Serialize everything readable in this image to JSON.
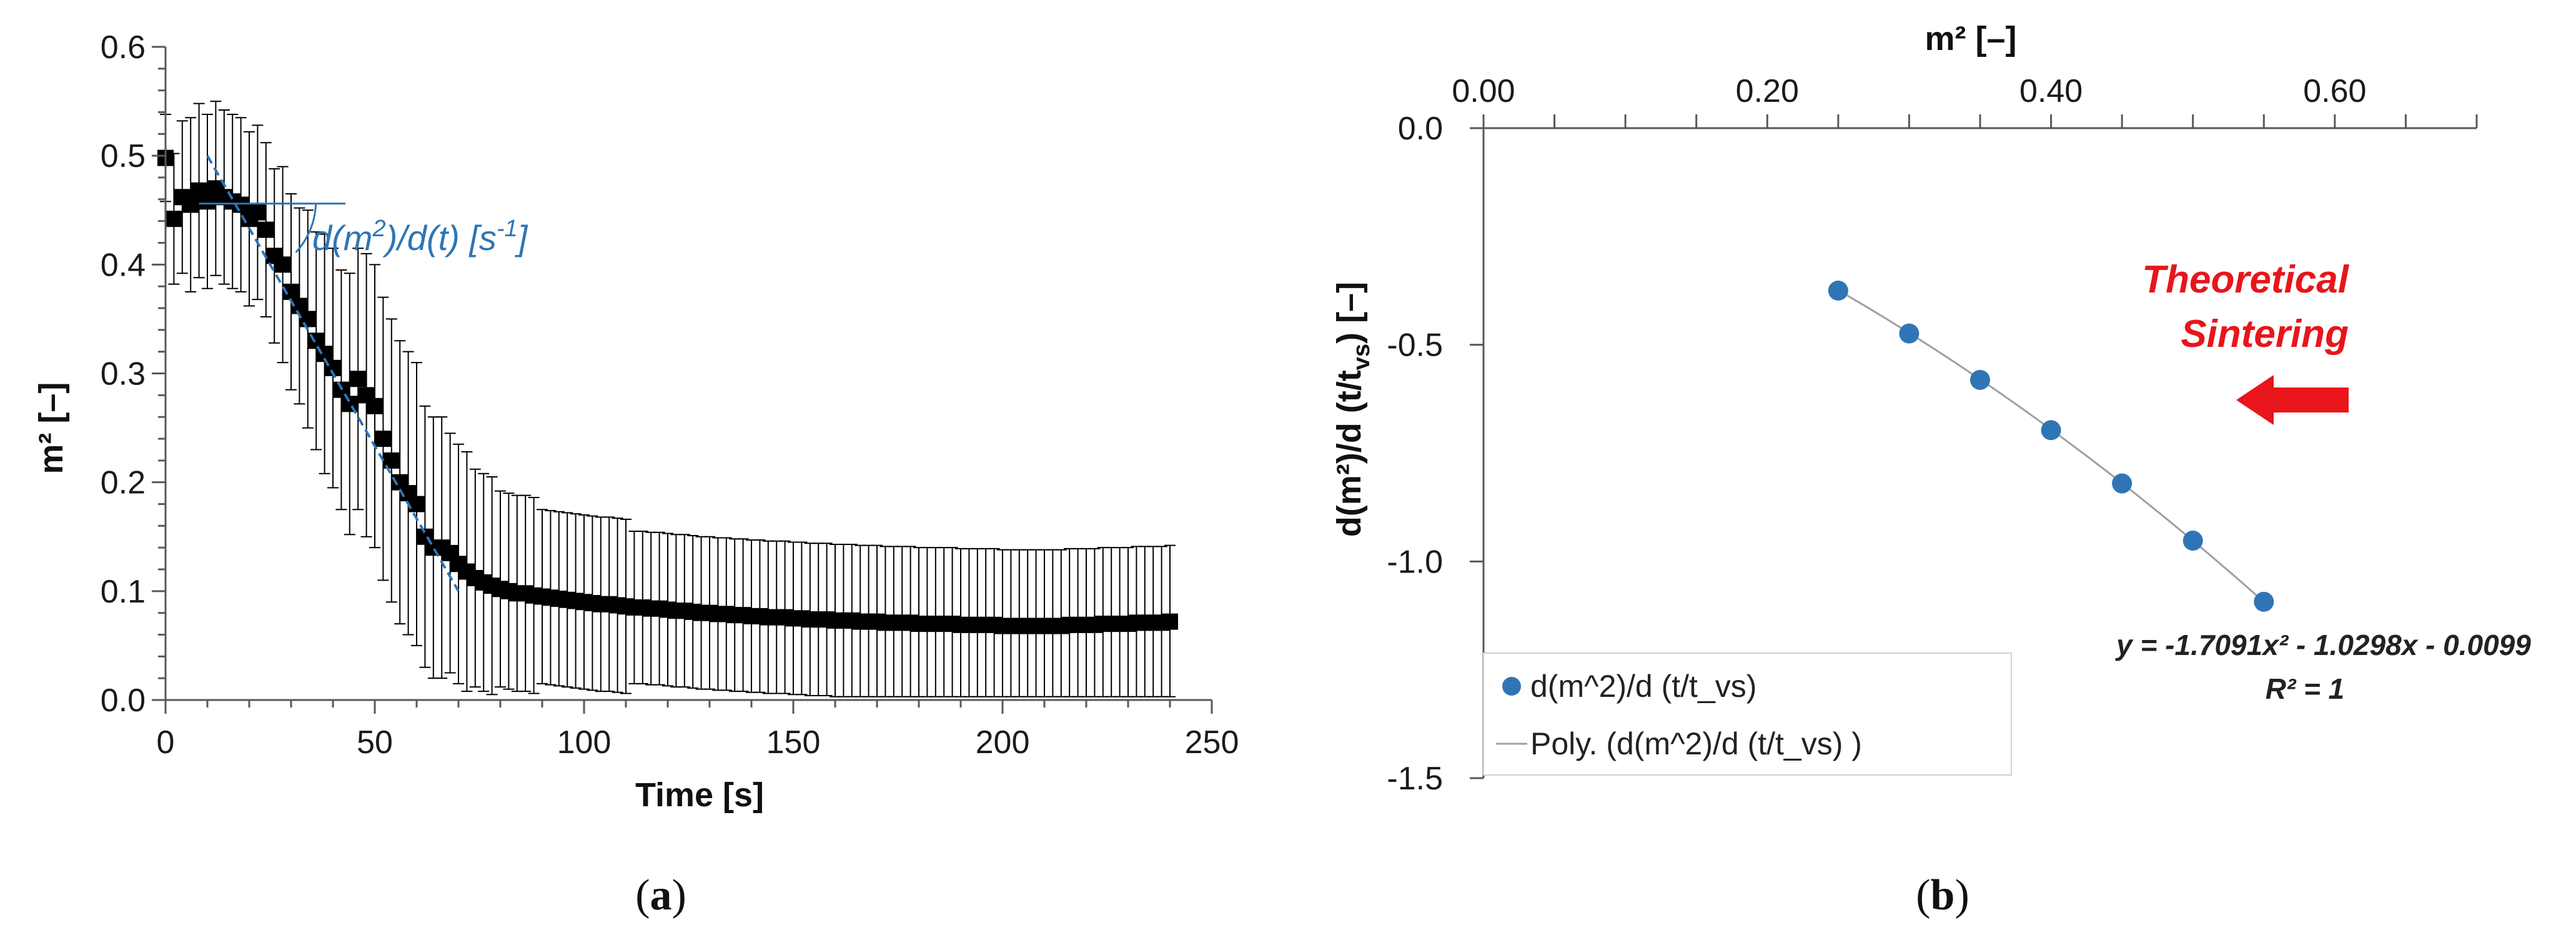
{
  "colors": {
    "marker_a": "#000000",
    "marker_b": "#2f75b5",
    "annotation": "#2e75b6",
    "arrow": "#e8151b",
    "axis": "#595959",
    "fit_line": "#a0a0a0"
  },
  "panels": {
    "a": {
      "label_open": "(",
      "label_letter": "a",
      "label_close": ")"
    },
    "b": {
      "label_open": "(",
      "label_letter": "b",
      "label_close": ")"
    }
  },
  "chart_data": [
    {
      "id": "a",
      "type": "scatter",
      "title": "",
      "xlabel": "Time [s]",
      "ylabel": "m² [–]",
      "xlim": [
        0,
        250
      ],
      "ylim": [
        0,
        0.6
      ],
      "xticks": [
        "0",
        "50",
        "100",
        "150",
        "200",
        "250"
      ],
      "yticks": [
        "0.0",
        "0.1",
        "0.2",
        "0.3",
        "0.4",
        "0.5",
        "0.6"
      ],
      "grid": false,
      "annotation": {
        "main": "d(m",
        "sup1": "2",
        "mid": ")/d(t) [s",
        "sup2": "-1",
        "end": "]"
      },
      "series": [
        {
          "marker": "square",
          "x": [
            0,
            2,
            4,
            6,
            8,
            10,
            12,
            14,
            16,
            18,
            20,
            22,
            24,
            26,
            28,
            30,
            32,
            34,
            36,
            38,
            40,
            42,
            44,
            46,
            48,
            50,
            52,
            54,
            56,
            58,
            60,
            62,
            64,
            66,
            68,
            70,
            72,
            74,
            76,
            78,
            80,
            82,
            84,
            86,
            88,
            90,
            92,
            94,
            96,
            98,
            100,
            102,
            104,
            106,
            108,
            110,
            112,
            114,
            116,
            118,
            120,
            122,
            124,
            126,
            128,
            130,
            132,
            134,
            136,
            138,
            140,
            142,
            144,
            146,
            148,
            150,
            152,
            154,
            156,
            158,
            160,
            162,
            164,
            166,
            168,
            170,
            172,
            174,
            176,
            178,
            180,
            182,
            184,
            186,
            188,
            190,
            192,
            194,
            196,
            198,
            200,
            202,
            204,
            206,
            208,
            210,
            212,
            214,
            216,
            218,
            220,
            222,
            224,
            226,
            228,
            230,
            232,
            234,
            236,
            238,
            240
          ],
          "y": [
            0.498,
            0.442,
            0.462,
            0.455,
            0.468,
            0.458,
            0.47,
            0.462,
            0.458,
            0.455,
            0.442,
            0.448,
            0.432,
            0.408,
            0.4,
            0.375,
            0.362,
            0.35,
            0.33,
            0.318,
            0.305,
            0.285,
            0.272,
            0.295,
            0.28,
            0.27,
            0.24,
            0.22,
            0.2,
            0.19,
            0.18,
            0.15,
            0.14,
            0.14,
            0.135,
            0.125,
            0.118,
            0.112,
            0.108,
            0.105,
            0.102,
            0.1,
            0.098,
            0.098,
            0.096,
            0.095,
            0.094,
            0.093,
            0.092,
            0.091,
            0.09,
            0.089,
            0.088,
            0.088,
            0.087,
            0.086,
            0.085,
            0.085,
            0.084,
            0.084,
            0.083,
            0.082,
            0.082,
            0.081,
            0.08,
            0.08,
            0.079,
            0.079,
            0.078,
            0.078,
            0.077,
            0.077,
            0.076,
            0.076,
            0.076,
            0.075,
            0.075,
            0.074,
            0.074,
            0.074,
            0.073,
            0.073,
            0.073,
            0.072,
            0.072,
            0.072,
            0.071,
            0.071,
            0.071,
            0.071,
            0.07,
            0.07,
            0.07,
            0.07,
            0.07,
            0.069,
            0.069,
            0.069,
            0.069,
            0.069,
            0.068,
            0.068,
            0.068,
            0.068,
            0.068,
            0.068,
            0.068,
            0.068,
            0.069,
            0.069,
            0.069,
            0.069,
            0.07,
            0.07,
            0.07,
            0.07,
            0.071,
            0.071,
            0.071,
            0.071,
            0.072
          ],
          "err": [
            0.04,
            0.06,
            0.07,
            0.08,
            0.08,
            0.08,
            0.08,
            0.08,
            0.08,
            0.08,
            0.08,
            0.08,
            0.08,
            0.08,
            0.09,
            0.09,
            0.09,
            0.1,
            0.1,
            0.11,
            0.11,
            0.11,
            0.12,
            0.12,
            0.13,
            0.13,
            0.13,
            0.13,
            0.13,
            0.13,
            0.13,
            0.12,
            0.12,
            0.12,
            0.11,
            0.11,
            0.11,
            0.1,
            0.1,
            0.1,
            0.09,
            0.09,
            0.09,
            0.09,
            0.09,
            0.08,
            0.08,
            0.08,
            0.08,
            0.08,
            0.08,
            0.08,
            0.08,
            0.08,
            0.08,
            0.08,
            0.07,
            0.07,
            0.07,
            0.07,
            0.07,
            0.07,
            0.07,
            0.07,
            0.07,
            0.07,
            0.07,
            0.07,
            0.07,
            0.07,
            0.07,
            0.07,
            0.07,
            0.07,
            0.07,
            0.07,
            0.07,
            0.07,
            0.07,
            0.07,
            0.07,
            0.07,
            0.07,
            0.07,
            0.07,
            0.07,
            0.07,
            0.07,
            0.07,
            0.07,
            0.07,
            0.07,
            0.07,
            0.07,
            0.07,
            0.07,
            0.07,
            0.07,
            0.07,
            0.07,
            0.07,
            0.07,
            0.07,
            0.07,
            0.07,
            0.07,
            0.07,
            0.07,
            0.07,
            0.07,
            0.07,
            0.07,
            0.07,
            0.07,
            0.07,
            0.07,
            0.07,
            0.07,
            0.07,
            0.07,
            0.07
          ]
        }
      ],
      "tangent": {
        "x": [
          10,
          70
        ],
        "y": [
          0.5,
          0.1
        ]
      },
      "horizontal_ref": {
        "x": [
          8,
          43
        ],
        "y": [
          0.456,
          0.456
        ]
      }
    },
    {
      "id": "b",
      "type": "scatter",
      "title": "",
      "xlabel": "m²  [–]",
      "xaxis_position": "top",
      "ylabel_parts": {
        "main": "d(m²)/d (t/t",
        "sub": "vs",
        "end": ")  [–]"
      },
      "xlim": [
        0,
        0.7
      ],
      "ylim": [
        -1.5,
        0
      ],
      "xticks": [
        "0.00",
        "0.20",
        "0.40",
        "0.60"
      ],
      "yticks": [
        "0.0",
        "-0.5",
        "-1.0",
        "-1.5"
      ],
      "grid": false,
      "legend_position": "bottom-left",
      "series": [
        {
          "name": "d(m^2)/d (t/t_vs)",
          "x": [
            0.25,
            0.3,
            0.35,
            0.4,
            0.45,
            0.5,
            0.55
          ],
          "y": [
            -0.375,
            -0.474,
            -0.581,
            -0.697,
            -0.82,
            -0.952,
            -1.093
          ]
        }
      ],
      "trendline": {
        "name": "Poly. (d(m^2)/d (t/t_vs)  )",
        "equation": "y = -1.7091x² - 1.0298x - 0.0099",
        "r2": "R² = 1",
        "coefficients": [
          -1.7091,
          -1.0298,
          -0.0099
        ]
      },
      "annotation": {
        "line1": "Theoretical",
        "line2": "Sintering"
      }
    }
  ]
}
